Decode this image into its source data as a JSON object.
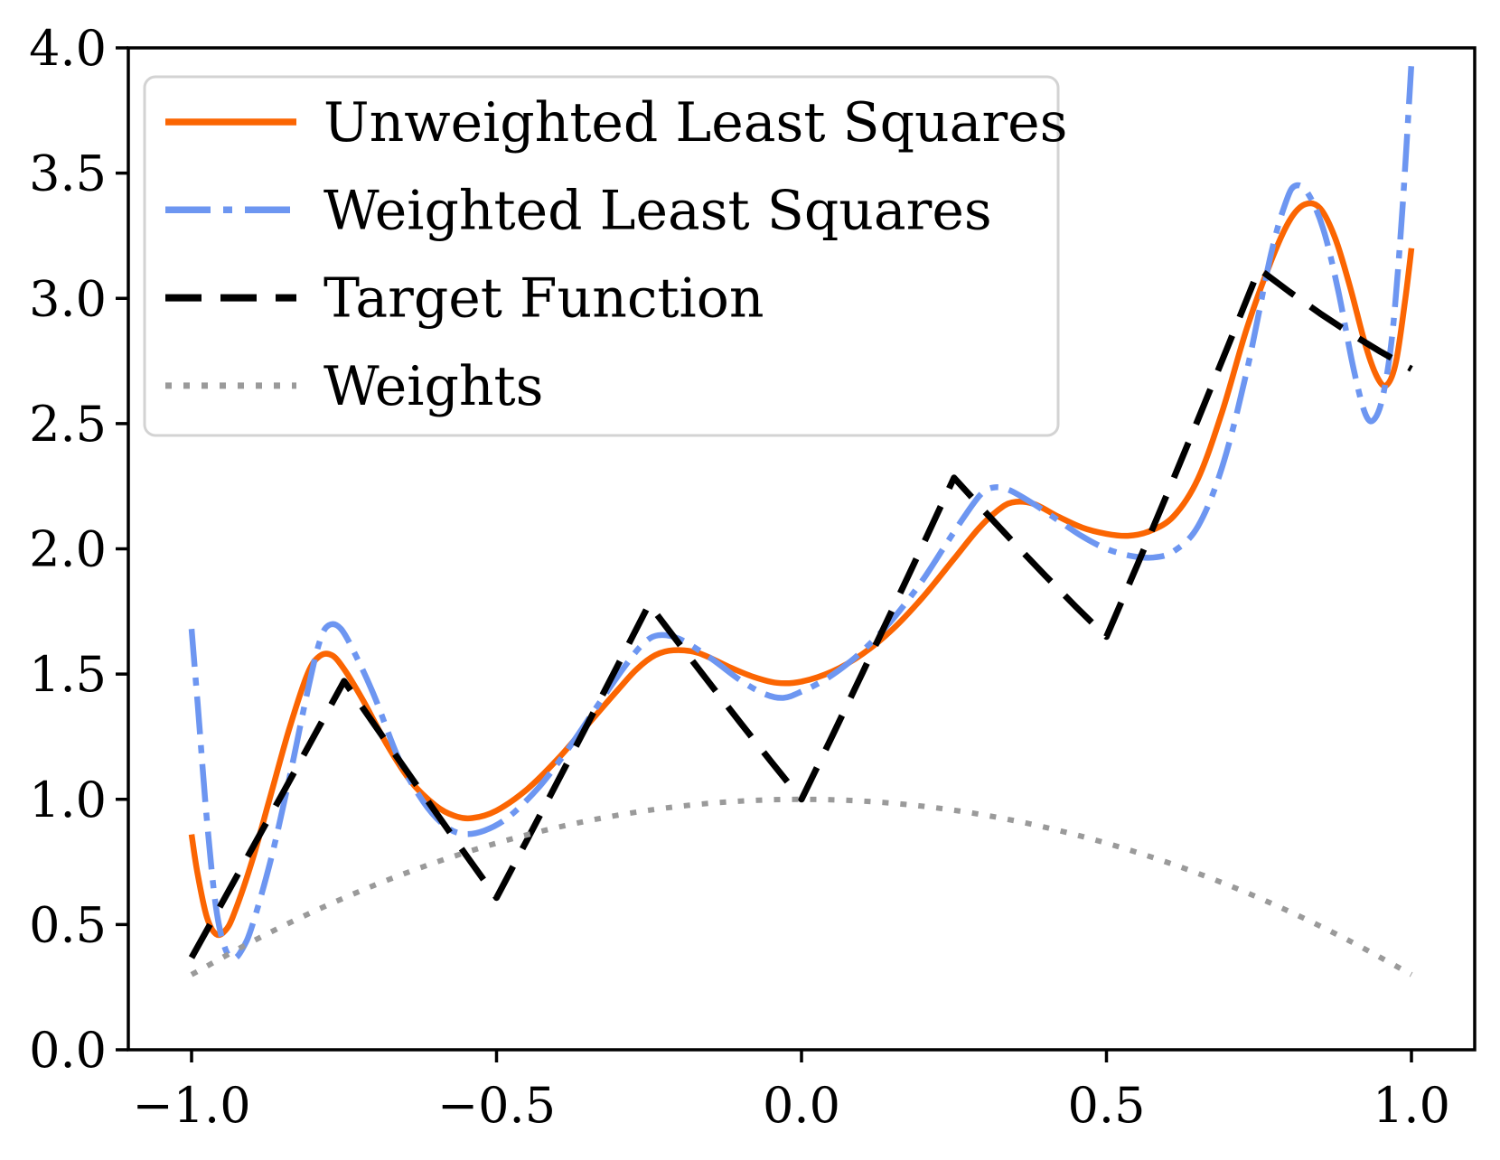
{
  "chart_data": {
    "type": "line",
    "title": "",
    "xlabel": "",
    "ylabel": "",
    "xlim": [
      -1,
      1
    ],
    "ylim": [
      0,
      4
    ],
    "grid": false,
    "background_color": "#ffffff",
    "spine_color": "#000000",
    "x_ticks": [
      {
        "value": -1.0,
        "label": "−1.0"
      },
      {
        "value": -0.5,
        "label": "−0.5"
      },
      {
        "value": 0.0,
        "label": "0.0"
      },
      {
        "value": 0.5,
        "label": "0.5"
      },
      {
        "value": 1.0,
        "label": "1.0"
      }
    ],
    "y_ticks": [
      {
        "value": 0.0,
        "label": "0.0"
      },
      {
        "value": 0.5,
        "label": "0.5"
      },
      {
        "value": 1.0,
        "label": "1.0"
      },
      {
        "value": 1.5,
        "label": "1.5"
      },
      {
        "value": 2.0,
        "label": "2.0"
      },
      {
        "value": 2.5,
        "label": "2.5"
      },
      {
        "value": 3.0,
        "label": "3.0"
      },
      {
        "value": 3.5,
        "label": "3.5"
      },
      {
        "value": 4.0,
        "label": "4.0"
      }
    ],
    "legend": {
      "position": "upper left",
      "border_color": "#d3d3d3",
      "entries": [
        {
          "label": "Unweighted Least Squares"
        },
        {
          "label": "Weighted Least Squares"
        },
        {
          "label": "Target Function"
        },
        {
          "label": "Weights"
        }
      ]
    },
    "series": [
      {
        "name": "Unweighted Least Squares",
        "color": "#fb6502",
        "style": "solid",
        "interp": "smooth",
        "points": [
          [
            -1.0,
            0.86
          ],
          [
            -0.99,
            0.7
          ],
          [
            -0.975,
            0.53
          ],
          [
            -0.96,
            0.462
          ],
          [
            -0.945,
            0.475
          ],
          [
            -0.93,
            0.545
          ],
          [
            -0.9,
            0.76
          ],
          [
            -0.87,
            1.02
          ],
          [
            -0.84,
            1.28
          ],
          [
            -0.81,
            1.5
          ],
          [
            -0.79,
            1.572
          ],
          [
            -0.77,
            1.575
          ],
          [
            -0.75,
            1.52
          ],
          [
            -0.72,
            1.4
          ],
          [
            -0.68,
            1.22
          ],
          [
            -0.64,
            1.07
          ],
          [
            -0.6,
            0.975
          ],
          [
            -0.57,
            0.935
          ],
          [
            -0.54,
            0.925
          ],
          [
            -0.5,
            0.955
          ],
          [
            -0.45,
            1.04
          ],
          [
            -0.4,
            1.16
          ],
          [
            -0.35,
            1.3
          ],
          [
            -0.3,
            1.44
          ],
          [
            -0.27,
            1.52
          ],
          [
            -0.24,
            1.575
          ],
          [
            -0.21,
            1.595
          ],
          [
            -0.17,
            1.585
          ],
          [
            -0.12,
            1.53
          ],
          [
            -0.08,
            1.49
          ],
          [
            -0.04,
            1.465
          ],
          [
            0.0,
            1.47
          ],
          [
            0.05,
            1.51
          ],
          [
            0.1,
            1.58
          ],
          [
            0.15,
            1.68
          ],
          [
            0.2,
            1.81
          ],
          [
            0.25,
            1.96
          ],
          [
            0.29,
            2.08
          ],
          [
            0.32,
            2.15
          ],
          [
            0.345,
            2.185
          ],
          [
            0.38,
            2.18
          ],
          [
            0.42,
            2.13
          ],
          [
            0.46,
            2.085
          ],
          [
            0.5,
            2.06
          ],
          [
            0.535,
            2.052
          ],
          [
            0.57,
            2.07
          ],
          [
            0.61,
            2.13
          ],
          [
            0.65,
            2.28
          ],
          [
            0.69,
            2.55
          ],
          [
            0.73,
            2.88
          ],
          [
            0.77,
            3.15
          ],
          [
            0.8,
            3.31
          ],
          [
            0.825,
            3.375
          ],
          [
            0.85,
            3.36
          ],
          [
            0.875,
            3.24
          ],
          [
            0.9,
            3.04
          ],
          [
            0.925,
            2.81
          ],
          [
            0.945,
            2.68
          ],
          [
            0.96,
            2.655
          ],
          [
            0.975,
            2.75
          ],
          [
            0.99,
            3.0
          ],
          [
            1.0,
            3.2
          ]
        ]
      },
      {
        "name": "Weighted Least Squares",
        "color": "#6d96f1",
        "style": "dashdot",
        "interp": "smooth",
        "points": [
          [
            -1.0,
            1.68
          ],
          [
            -0.99,
            1.38
          ],
          [
            -0.975,
            0.92
          ],
          [
            -0.96,
            0.57
          ],
          [
            -0.945,
            0.405
          ],
          [
            -0.93,
            0.365
          ],
          [
            -0.915,
            0.41
          ],
          [
            -0.9,
            0.5
          ],
          [
            -0.87,
            0.76
          ],
          [
            -0.84,
            1.08
          ],
          [
            -0.81,
            1.43
          ],
          [
            -0.79,
            1.63
          ],
          [
            -0.775,
            1.695
          ],
          [
            -0.755,
            1.68
          ],
          [
            -0.73,
            1.57
          ],
          [
            -0.7,
            1.41
          ],
          [
            -0.66,
            1.16
          ],
          [
            -0.62,
            0.99
          ],
          [
            -0.585,
            0.895
          ],
          [
            -0.555,
            0.862
          ],
          [
            -0.52,
            0.875
          ],
          [
            -0.48,
            0.93
          ],
          [
            -0.43,
            1.05
          ],
          [
            -0.38,
            1.21
          ],
          [
            -0.33,
            1.39
          ],
          [
            -0.29,
            1.53
          ],
          [
            -0.26,
            1.62
          ],
          [
            -0.235,
            1.655
          ],
          [
            -0.2,
            1.64
          ],
          [
            -0.15,
            1.565
          ],
          [
            -0.1,
            1.475
          ],
          [
            -0.06,
            1.42
          ],
          [
            -0.03,
            1.405
          ],
          [
            0.0,
            1.43
          ],
          [
            0.04,
            1.48
          ],
          [
            0.08,
            1.55
          ],
          [
            0.12,
            1.64
          ],
          [
            0.16,
            1.75
          ],
          [
            0.2,
            1.88
          ],
          [
            0.24,
            2.03
          ],
          [
            0.27,
            2.14
          ],
          [
            0.295,
            2.22
          ],
          [
            0.315,
            2.245
          ],
          [
            0.34,
            2.235
          ],
          [
            0.38,
            2.18
          ],
          [
            0.42,
            2.115
          ],
          [
            0.46,
            2.05
          ],
          [
            0.5,
            2.0
          ],
          [
            0.54,
            1.972
          ],
          [
            0.575,
            1.965
          ],
          [
            0.61,
            1.99
          ],
          [
            0.65,
            2.09
          ],
          [
            0.69,
            2.33
          ],
          [
            0.73,
            2.71
          ],
          [
            0.77,
            3.18
          ],
          [
            0.795,
            3.39
          ],
          [
            0.81,
            3.45
          ],
          [
            0.83,
            3.42
          ],
          [
            0.855,
            3.28
          ],
          [
            0.88,
            3.03
          ],
          [
            0.905,
            2.72
          ],
          [
            0.925,
            2.535
          ],
          [
            0.94,
            2.52
          ],
          [
            0.955,
            2.63
          ],
          [
            0.97,
            2.89
          ],
          [
            0.985,
            3.35
          ],
          [
            1.0,
            3.94
          ]
        ]
      },
      {
        "name": "Target Function",
        "color": "#000000",
        "style": "dashed",
        "interp": "linear",
        "points": [
          [
            -1,
            0.368
          ],
          [
            -0.95,
            0.587
          ],
          [
            -0.9,
            0.807
          ],
          [
            -0.85,
            1.027
          ],
          [
            -0.8,
            1.249
          ],
          [
            -0.75,
            1.472
          ],
          [
            -0.7,
            1.297
          ],
          [
            -0.65,
            1.122
          ],
          [
            -0.6,
            0.949
          ],
          [
            -0.55,
            0.777
          ],
          [
            -0.5,
            0.607
          ],
          [
            -0.45,
            0.838
          ],
          [
            -0.4,
            1.07
          ],
          [
            -0.35,
            1.305
          ],
          [
            -0.3,
            1.541
          ],
          [
            -0.25,
            1.779
          ],
          [
            -0.2,
            1.619
          ],
          [
            -0.15,
            1.461
          ],
          [
            -0.1,
            1.305
          ],
          [
            -0.05,
            1.151
          ],
          [
            0,
            1.0
          ],
          [
            0.05,
            1.251
          ],
          [
            0.1,
            1.505
          ],
          [
            0.15,
            1.762
          ],
          [
            0.2,
            2.021
          ],
          [
            0.25,
            2.284
          ],
          [
            0.3,
            2.15
          ],
          [
            0.35,
            2.019
          ],
          [
            0.4,
            1.892
          ],
          [
            0.45,
            1.768
          ],
          [
            0.5,
            1.649
          ],
          [
            0.55,
            1.933
          ],
          [
            0.6,
            2.222
          ],
          [
            0.65,
            2.516
          ],
          [
            0.7,
            2.814
          ],
          [
            0.75,
            3.117
          ],
          [
            0.8,
            3.026
          ],
          [
            0.85,
            2.94
          ],
          [
            0.9,
            2.86
          ],
          [
            0.95,
            2.786
          ],
          [
            1,
            2.718
          ]
        ]
      },
      {
        "name": "Weights",
        "color": "#9a9a9a",
        "style": "dotted",
        "interp": "smooth",
        "points": [
          [
            -1,
            0.3
          ],
          [
            -0.9,
            0.433
          ],
          [
            -0.8,
            0.552
          ],
          [
            -0.7,
            0.657
          ],
          [
            -0.6,
            0.748
          ],
          [
            -0.5,
            0.825
          ],
          [
            -0.4,
            0.888
          ],
          [
            -0.3,
            0.937
          ],
          [
            -0.2,
            0.972
          ],
          [
            -0.1,
            0.993
          ],
          [
            0,
            1.0
          ],
          [
            0.1,
            0.993
          ],
          [
            0.2,
            0.972
          ],
          [
            0.3,
            0.937
          ],
          [
            0.4,
            0.888
          ],
          [
            0.5,
            0.825
          ],
          [
            0.6,
            0.748
          ],
          [
            0.7,
            0.657
          ],
          [
            0.8,
            0.552
          ],
          [
            0.9,
            0.433
          ],
          [
            1,
            0.3
          ]
        ]
      }
    ]
  }
}
